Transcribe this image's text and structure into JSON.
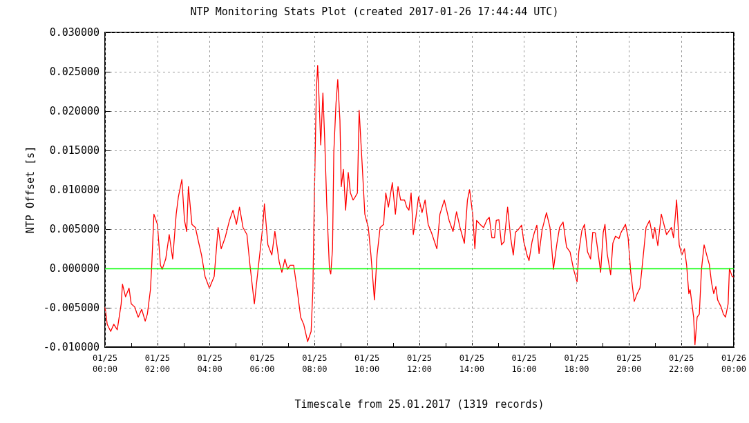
{
  "chart_data": {
    "type": "line",
    "title": "NTP Monitoring Stats Plot (created 2017-01-26 17:44:44 UTC)",
    "xlabel": "Timescale from 25.01.2017 (1319 records)",
    "ylabel": "NTP Offset [s]",
    "x": [
      "2017-01-25T00:00",
      "2017-01-25T00:05",
      "2017-01-25T00:13",
      "2017-01-25T00:20",
      "2017-01-25T00:28",
      "2017-01-25T00:37",
      "2017-01-25T00:40",
      "2017-01-25T00:47",
      "2017-01-25T00:55",
      "2017-01-25T01:00",
      "2017-01-25T01:08",
      "2017-01-25T01:16",
      "2017-01-25T01:24",
      "2017-01-25T01:32",
      "2017-01-25T01:37",
      "2017-01-25T01:44",
      "2017-01-25T01:47",
      "2017-01-25T01:52",
      "2017-01-25T02:00",
      "2017-01-25T02:07",
      "2017-01-25T02:11",
      "2017-01-25T02:19",
      "2017-01-25T02:27",
      "2017-01-25T02:35",
      "2017-01-25T02:43",
      "2017-01-25T02:48",
      "2017-01-25T02:56",
      "2017-01-25T03:02",
      "2017-01-25T03:07",
      "2017-01-25T03:11",
      "2017-01-25T03:19",
      "2017-01-25T03:27",
      "2017-01-25T03:34",
      "2017-01-25T03:41",
      "2017-01-25T03:49",
      "2017-01-25T03:59",
      "2017-01-25T04:10",
      "2017-01-25T04:19",
      "2017-01-25T04:26",
      "2017-01-25T04:35",
      "2017-01-25T04:45",
      "2017-01-25T04:53",
      "2017-01-25T05:01",
      "2017-01-25T05:08",
      "2017-01-25T05:16",
      "2017-01-25T05:25",
      "2017-01-25T05:32",
      "2017-01-25T05:42",
      "2017-01-25T05:48",
      "2017-01-25T06:01",
      "2017-01-25T06:05",
      "2017-01-25T06:13",
      "2017-01-25T06:22",
      "2017-01-25T06:29",
      "2017-01-25T06:39",
      "2017-01-25T06:45",
      "2017-01-25T06:52",
      "2017-01-25T06:58",
      "2017-01-25T07:04",
      "2017-01-25T07:12",
      "2017-01-25T07:20",
      "2017-01-25T07:28",
      "2017-01-25T07:35",
      "2017-01-25T07:44",
      "2017-01-25T07:52",
      "2017-01-25T07:56",
      "2017-01-25T07:59",
      "2017-01-25T08:04",
      "2017-01-25T08:07",
      "2017-01-25T08:10",
      "2017-01-25T08:14",
      "2017-01-25T08:19",
      "2017-01-25T08:23",
      "2017-01-25T08:28",
      "2017-01-25T08:34",
      "2017-01-25T08:37",
      "2017-01-25T08:41",
      "2017-01-25T08:44",
      "2017-01-25T08:49",
      "2017-01-25T08:53",
      "2017-01-25T08:58",
      "2017-01-25T09:01",
      "2017-01-25T09:06",
      "2017-01-25T09:11",
      "2017-01-25T09:17",
      "2017-01-25T09:22",
      "2017-01-25T09:28",
      "2017-01-25T09:33",
      "2017-01-25T09:38",
      "2017-01-25T09:42",
      "2017-01-25T09:49",
      "2017-01-25T09:55",
      "2017-01-25T10:03",
      "2017-01-25T10:09",
      "2017-01-25T10:17",
      "2017-01-25T10:23",
      "2017-01-25T10:30",
      "2017-01-25T10:38",
      "2017-01-25T10:43",
      "2017-01-25T10:49",
      "2017-01-25T10:58",
      "2017-01-25T11:05",
      "2017-01-25T11:11",
      "2017-01-25T11:17",
      "2017-01-25T11:26",
      "2017-01-25T11:31",
      "2017-01-25T11:36",
      "2017-01-25T11:41",
      "2017-01-25T11:46",
      "2017-01-25T11:52",
      "2017-01-25T11:58",
      "2017-01-25T12:06",
      "2017-01-25T12:13",
      "2017-01-25T12:20",
      "2017-01-25T12:28",
      "2017-01-25T12:40",
      "2017-01-25T12:47",
      "2017-01-25T12:57",
      "2017-01-25T13:08",
      "2017-01-25T13:17",
      "2017-01-25T13:25",
      "2017-01-25T13:33",
      "2017-01-25T13:43",
      "2017-01-25T13:50",
      "2017-01-25T13:55",
      "2017-01-25T14:02",
      "2017-01-25T14:07",
      "2017-01-25T14:11",
      "2017-01-25T14:19",
      "2017-01-25T14:27",
      "2017-01-25T14:35",
      "2017-01-25T14:40",
      "2017-01-25T14:46",
      "2017-01-25T14:52",
      "2017-01-25T14:56",
      "2017-01-25T15:02",
      "2017-01-25T15:08",
      "2017-01-25T15:14",
      "2017-01-25T15:22",
      "2017-01-25T15:29",
      "2017-01-25T15:35",
      "2017-01-25T15:40",
      "2017-01-25T15:46",
      "2017-01-25T15:54",
      "2017-01-25T15:59",
      "2017-01-25T16:07",
      "2017-01-25T16:11",
      "2017-01-25T16:18",
      "2017-01-25T16:23",
      "2017-01-25T16:29",
      "2017-01-25T16:34",
      "2017-01-25T16:41",
      "2017-01-25T16:51",
      "2017-01-25T16:59",
      "2017-01-25T17:07",
      "2017-01-25T17:15",
      "2017-01-25T17:21",
      "2017-01-25T17:29",
      "2017-01-25T17:37",
      "2017-01-25T17:45",
      "2017-01-25T17:53",
      "2017-01-25T18:01",
      "2017-01-25T18:05",
      "2017-01-25T18:12",
      "2017-01-25T18:18",
      "2017-01-25T18:25",
      "2017-01-25T18:32",
      "2017-01-25T18:37",
      "2017-01-25T18:43",
      "2017-01-25T18:50",
      "2017-01-25T18:55",
      "2017-01-25T19:01",
      "2017-01-25T19:05",
      "2017-01-25T19:10",
      "2017-01-25T19:18",
      "2017-01-25T19:23",
      "2017-01-25T19:29",
      "2017-01-25T19:37",
      "2017-01-25T19:42",
      "2017-01-25T19:52",
      "2017-01-25T19:58",
      "2017-01-25T20:04",
      "2017-01-25T20:12",
      "2017-01-25T20:18",
      "2017-01-25T20:25",
      "2017-01-25T20:29",
      "2017-01-25T20:39",
      "2017-01-25T20:47",
      "2017-01-25T20:55",
      "2017-01-25T20:59",
      "2017-01-25T21:06",
      "2017-01-25T21:14",
      "2017-01-25T21:20",
      "2017-01-25T21:26",
      "2017-01-25T21:31",
      "2017-01-25T21:37",
      "2017-01-25T21:42",
      "2017-01-25T21:49",
      "2017-01-25T21:55",
      "2017-01-25T22:01",
      "2017-01-25T22:07",
      "2017-01-25T22:12",
      "2017-01-25T22:17",
      "2017-01-25T22:20",
      "2017-01-25T22:28",
      "2017-01-25T22:31",
      "2017-01-25T22:36",
      "2017-01-25T22:41",
      "2017-01-25T22:46",
      "2017-01-25T22:52",
      "2017-01-25T22:58",
      "2017-01-25T23:04",
      "2017-01-25T23:09",
      "2017-01-25T23:14",
      "2017-01-25T23:19",
      "2017-01-25T23:23",
      "2017-01-25T23:31",
      "2017-01-25T23:36",
      "2017-01-25T23:41",
      "2017-01-25T23:47",
      "2017-01-25T23:50",
      "2017-01-25T23:56",
      "2017-01-26T00:00"
    ],
    "series": [
      {
        "color": "#ff0000",
        "values": [
          -0.0049,
          -0.0071,
          -0.008,
          -0.0071,
          -0.0078,
          -0.0045,
          -0.002,
          -0.0036,
          -0.0025,
          -0.0045,
          -0.0049,
          -0.0062,
          -0.0052,
          -0.0067,
          -0.0058,
          -0.0027,
          0.0004,
          0.0069,
          0.0056,
          0.0004,
          -0.0001,
          0.0012,
          0.0043,
          0.0012,
          0.0069,
          0.0091,
          0.0113,
          0.0061,
          0.0047,
          0.0104,
          0.0056,
          0.0052,
          0.0034,
          0.0017,
          -0.001,
          -0.0025,
          -0.001,
          0.0052,
          0.0025,
          0.0039,
          0.0061,
          0.0074,
          0.0056,
          0.0078,
          0.0052,
          0.0043,
          0.0004,
          -0.0045,
          -0.0014,
          0.0052,
          0.0082,
          0.003,
          0.0017,
          0.0047,
          0.0008,
          -0.0005,
          0.0012,
          -0.0001,
          0.0004,
          0.0004,
          -0.0027,
          -0.0062,
          -0.0071,
          -0.0093,
          -0.008,
          -0.0027,
          0.0078,
          0.0227,
          0.0258,
          0.0218,
          0.0157,
          0.0223,
          0.0166,
          0.0078,
          -0.0001,
          -0.0007,
          0.0025,
          0.0148,
          0.021,
          0.024,
          0.0188,
          0.0104,
          0.0126,
          0.0074,
          0.0122,
          0.0096,
          0.0087,
          0.0091,
          0.0096,
          0.0201,
          0.0131,
          0.0069,
          0.0052,
          0.0017,
          -0.004,
          0.0017,
          0.0052,
          0.0056,
          0.0096,
          0.0078,
          0.0109,
          0.0069,
          0.0104,
          0.0087,
          0.0087,
          0.0078,
          0.0074,
          0.0096,
          0.0043,
          0.0065,
          0.0091,
          0.0071,
          0.0087,
          0.0056,
          0.0045,
          0.0025,
          0.0069,
          0.0087,
          0.0061,
          0.0047,
          0.0072,
          0.0052,
          0.0032,
          0.0087,
          0.01,
          0.0069,
          0.0025,
          0.0061,
          0.0056,
          0.0052,
          0.0062,
          0.0065,
          0.0039,
          0.0039,
          0.0061,
          0.0062,
          0.003,
          0.0034,
          0.0078,
          0.0039,
          0.0017,
          0.0046,
          0.0049,
          0.0055,
          0.0034,
          0.0016,
          0.001,
          0.0034,
          0.0045,
          0.0055,
          0.0019,
          0.0049,
          0.0071,
          0.0052,
          -0.0001,
          0.0032,
          0.0052,
          0.0059,
          0.0027,
          0.0021,
          -0.0001,
          -0.0017,
          0.0021,
          0.0048,
          0.0056,
          0.0021,
          0.0012,
          0.0046,
          0.0045,
          0.0017,
          -0.0005,
          0.0046,
          0.0056,
          0.0019,
          -0.0008,
          0.0032,
          0.0041,
          0.0038,
          0.0046,
          0.0056,
          0.0039,
          -0.0005,
          -0.0042,
          -0.0033,
          -0.0025,
          -0.0004,
          0.0052,
          0.0061,
          0.0038,
          0.0052,
          0.0029,
          0.0069,
          0.0056,
          0.0043,
          0.0047,
          0.0052,
          0.0039,
          0.0087,
          0.003,
          0.0017,
          0.0025,
          0.0004,
          -0.0032,
          -0.0027,
          -0.0062,
          -0.0097,
          -0.0062,
          -0.0058,
          -0.0001,
          0.003,
          0.0017,
          0.0005,
          -0.0018,
          -0.0032,
          -0.0023,
          -0.004,
          -0.0049,
          -0.0058,
          -0.0062,
          -0.0045,
          0.0,
          -0.001,
          -0.0011
        ]
      }
    ],
    "xlim": [
      "2017-01-25T00:00",
      "2017-01-26T00:00"
    ],
    "xticks": [
      {
        "value": "2017-01-25T00:00",
        "label": "01/25\n00:00"
      },
      {
        "value": "2017-01-25T01:00",
        "label": null
      },
      {
        "value": "2017-01-25T02:00",
        "label": "01/25\n02:00"
      },
      {
        "value": "2017-01-25T03:00",
        "label": null
      },
      {
        "value": "2017-01-25T04:00",
        "label": "01/25\n04:00"
      },
      {
        "value": "2017-01-25T05:00",
        "label": null
      },
      {
        "value": "2017-01-25T06:00",
        "label": "01/25\n06:00"
      },
      {
        "value": "2017-01-25T07:00",
        "label": null
      },
      {
        "value": "2017-01-25T08:00",
        "label": "01/25\n08:00"
      },
      {
        "value": "2017-01-25T09:00",
        "label": null
      },
      {
        "value": "2017-01-25T10:00",
        "label": "01/25\n10:00"
      },
      {
        "value": "2017-01-25T11:00",
        "label": null
      },
      {
        "value": "2017-01-25T12:00",
        "label": "01/25\n12:00"
      },
      {
        "value": "2017-01-25T13:00",
        "label": null
      },
      {
        "value": "2017-01-25T14:00",
        "label": "01/25\n14:00"
      },
      {
        "value": "2017-01-25T15:00",
        "label": null
      },
      {
        "value": "2017-01-25T16:00",
        "label": "01/25\n16:00"
      },
      {
        "value": "2017-01-25T17:00",
        "label": null
      },
      {
        "value": "2017-01-25T18:00",
        "label": "01/25\n18:00"
      },
      {
        "value": "2017-01-25T19:00",
        "label": null
      },
      {
        "value": "2017-01-25T20:00",
        "label": "01/25\n20:00"
      },
      {
        "value": "2017-01-25T21:00",
        "label": null
      },
      {
        "value": "2017-01-25T22:00",
        "label": "01/25\n22:00"
      },
      {
        "value": "2017-01-25T23:00",
        "label": null
      },
      {
        "value": "2017-01-26T00:00",
        "label": "01/26\n00:00"
      }
    ],
    "ylim": [
      -0.01,
      0.03
    ],
    "yticks": [
      {
        "value": -0.01,
        "label": "-0.010000"
      },
      {
        "value": -0.005,
        "label": "-0.005000"
      },
      {
        "value": 0,
        "label": "0.000000"
      },
      {
        "value": 0.005,
        "label": "0.005000"
      },
      {
        "value": 0.01,
        "label": "0.010000"
      },
      {
        "value": 0.015,
        "label": "0.015000"
      },
      {
        "value": 0.02,
        "label": "0.020000"
      },
      {
        "value": 0.025,
        "label": "0.025000"
      },
      {
        "value": 0.03,
        "label": "0.030000"
      }
    ],
    "ref_lines": [
      {
        "axis": "y",
        "value": 0,
        "color": "#00ff00"
      }
    ],
    "grid": true,
    "marker": "none",
    "line_style": "solid"
  }
}
